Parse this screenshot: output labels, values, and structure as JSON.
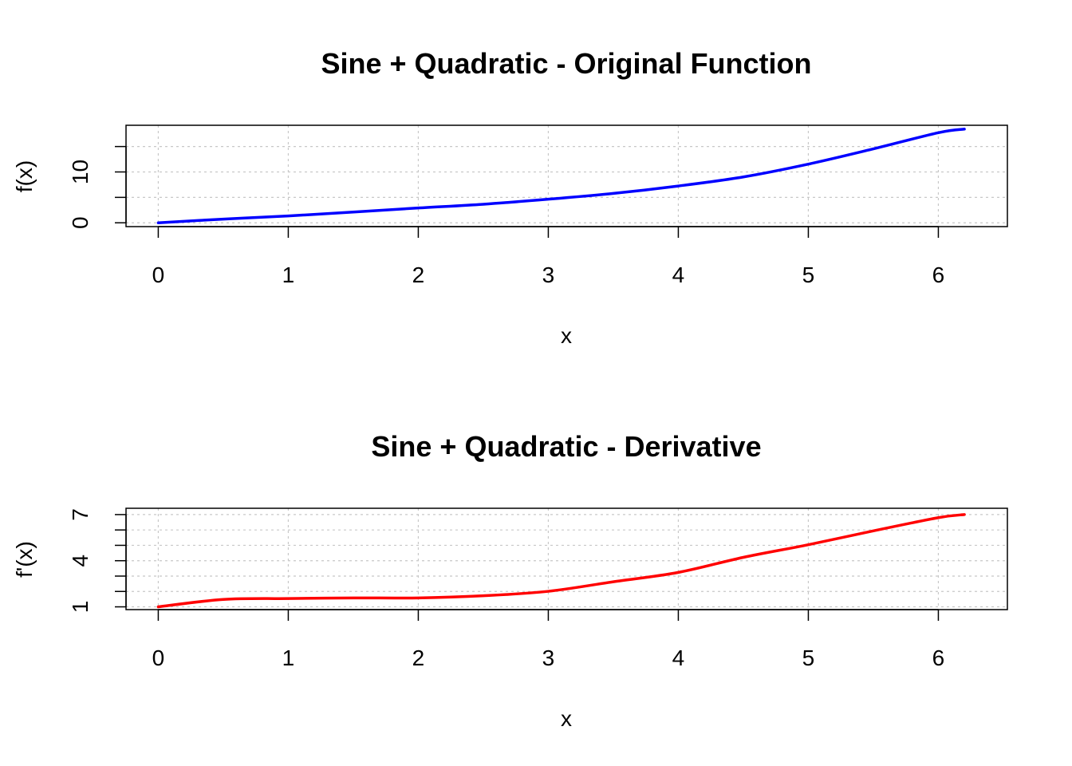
{
  "chart_data": [
    {
      "type": "line",
      "title": "Sine + Quadratic - Original Function",
      "xlabel": "x",
      "ylabel": "f(x)",
      "xlim": [
        -0.248,
        6.531
      ],
      "ylim": [
        -0.75,
        19.18
      ],
      "x_ticks": [
        0,
        1,
        2,
        3,
        4,
        5,
        6
      ],
      "x_tick_labels": [
        "0",
        "1",
        "2",
        "3",
        "4",
        "5",
        "6"
      ],
      "y_ticks": [
        0,
        5,
        10,
        15
      ],
      "y_tick_labels": [
        "0",
        "",
        "10",
        ""
      ],
      "grid": true,
      "series": [
        {
          "color": "#0000ff",
          "x": [
            0,
            0.5,
            1,
            1.5,
            2,
            2.5,
            3,
            3.5,
            4,
            4.5,
            5,
            5.5,
            6,
            6.2
          ],
          "y": [
            0,
            0.73,
            1.34,
            2.12,
            2.91,
            3.65,
            4.64,
            5.78,
            7.24,
            9.02,
            11.54,
            14.54,
            17.72,
            18.43
          ]
        }
      ]
    },
    {
      "type": "line",
      "title": "Sine + Quadratic - Derivative",
      "xlabel": "x",
      "ylabel": "f'(x)",
      "xlim": [
        -0.248,
        6.531
      ],
      "ylim": [
        0.82,
        7.41
      ],
      "x_ticks": [
        0,
        1,
        2,
        3,
        4,
        5,
        6
      ],
      "x_tick_labels": [
        "0",
        "1",
        "2",
        "3",
        "4",
        "5",
        "6"
      ],
      "y_ticks": [
        1,
        2,
        3,
        4,
        5,
        6,
        7
      ],
      "y_tick_labels": [
        "1",
        "",
        "",
        "4",
        "",
        "",
        "7"
      ],
      "grid": true,
      "series": [
        {
          "color": "#ff0000",
          "x": [
            0,
            0.5,
            1,
            1.5,
            2,
            2.5,
            3,
            3.5,
            4,
            4.5,
            5,
            5.5,
            6,
            6.2
          ],
          "y": [
            1.0,
            1.48,
            1.54,
            1.58,
            1.58,
            1.72,
            2.01,
            2.63,
            3.24,
            4.22,
            5.04,
            5.94,
            6.8,
            7.0
          ]
        }
      ]
    }
  ]
}
